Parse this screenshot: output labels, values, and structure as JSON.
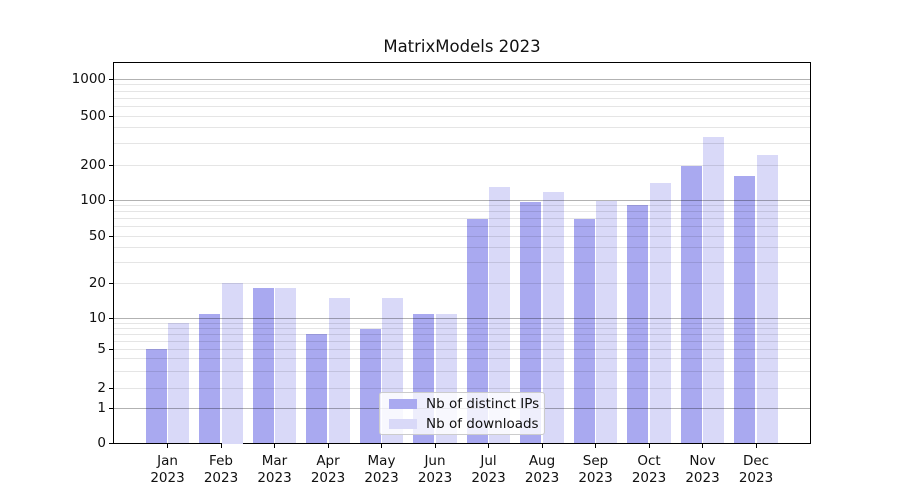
{
  "chart_data": {
    "type": "bar",
    "title": "MatrixModels 2023",
    "categories": [
      "Jan",
      "Feb",
      "Mar",
      "Apr",
      "May",
      "Jun",
      "Jul",
      "Aug",
      "Sep",
      "Oct",
      "Nov",
      "Dec"
    ],
    "year_label": "2023",
    "series": [
      {
        "name": "Nb of distinct IPs",
        "color": "#a9a9f0",
        "values": [
          5,
          11,
          18,
          7,
          8,
          11,
          70,
          96,
          70,
          92,
          196,
          162
        ]
      },
      {
        "name": "Nb of downloads",
        "color": "#d9d9f8",
        "values": [
          9,
          20,
          18,
          15,
          15,
          11,
          130,
          118,
          98,
          140,
          335,
          240
        ]
      }
    ],
    "xlabel": "",
    "ylabel": "",
    "yscale": "symlog",
    "yticks": [
      0,
      1,
      2,
      5,
      10,
      20,
      50,
      100,
      200,
      500,
      1000
    ],
    "ylim": [
      0,
      1400
    ],
    "grid": true,
    "legend_position": "lower center"
  }
}
